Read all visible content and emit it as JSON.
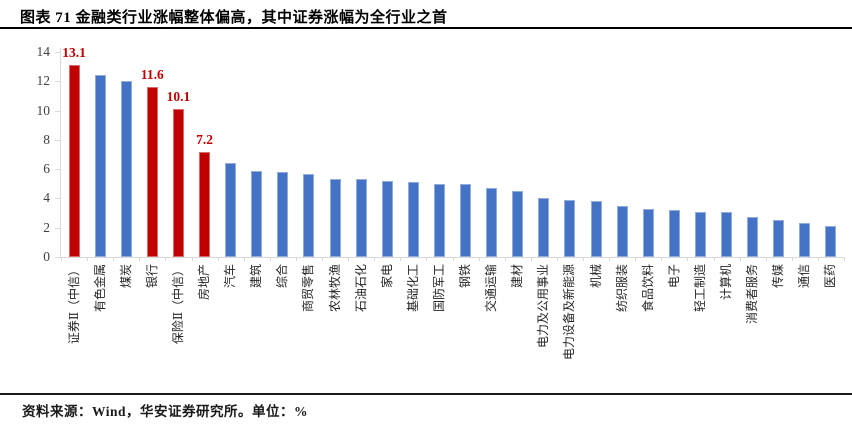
{
  "title": "图表 71  金融类行业涨幅整体偏高，其中证券涨幅为全行业之首",
  "footer": {
    "source": "资料来源：Wind，华安证券研究所。单位：%"
  },
  "colors": {
    "highlight": "#C00000",
    "default": "#4472C4",
    "axis": "#d9d9d9",
    "tick_text": "#404040",
    "category_text": "#262626"
  },
  "chart_data": {
    "type": "bar",
    "title": "图表 71  金融类行业涨幅整体偏高，其中证券涨幅为全行业之首",
    "unit": "%",
    "ylim": [
      0,
      14
    ],
    "yticks": [
      0,
      2,
      4,
      6,
      8,
      10,
      12,
      14
    ],
    "grid": false,
    "legend": "none",
    "categories": [
      "证券Ⅱ（中信）",
      "有色金属",
      "煤炭",
      "银行",
      "保险Ⅱ（中信）",
      "房地产",
      "汽车",
      "建筑",
      "综合",
      "商贸零售",
      "农林牧渔",
      "石油石化",
      "家电",
      "基础化工",
      "国防军工",
      "钢铁",
      "交通运输",
      "建材",
      "电力及公用事业",
      "电力设备及新能源",
      "机械",
      "纺织服装",
      "食品饮料",
      "电子",
      "轻工制造",
      "计算机",
      "消费者服务",
      "传媒",
      "通信",
      "医药"
    ],
    "values": [
      13.1,
      12.4,
      12.0,
      11.6,
      10.1,
      7.2,
      6.4,
      5.9,
      5.8,
      5.7,
      5.3,
      5.3,
      5.2,
      5.1,
      5.0,
      5.0,
      4.7,
      4.5,
      4.0,
      3.9,
      3.8,
      3.5,
      3.3,
      3.2,
      3.1,
      3.1,
      2.7,
      2.5,
      2.3,
      2.1
    ],
    "highlighted_indices": [
      0,
      3,
      4,
      5
    ],
    "data_labels": {
      "0": "13.1",
      "3": "11.6",
      "4": "10.1",
      "5": "7.2"
    }
  }
}
